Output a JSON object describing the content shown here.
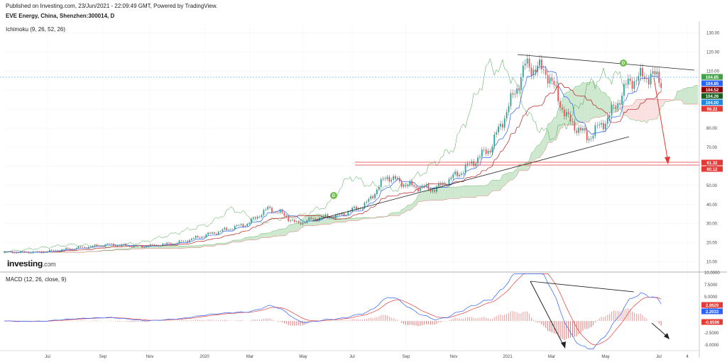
{
  "header": {
    "published": "Published on Investing.com, 23/Jun/2021 - 22:09:49 GMT, Powered by TradingView.",
    "ticker": "EVE Energy, China, Shenzhen:300014, D",
    "ichimoku_label": "Ichimoku (9, 26, 52, 26)",
    "macd_label": "MACD (12, 26, close, 9)"
  },
  "logo": {
    "brand": "Investing",
    "suffix": ".com"
  },
  "colors": {
    "up": "#26a69a",
    "down": "#ef5350",
    "conversion": "#2962ff",
    "base": "#b71c1c",
    "lagging": "#43a047",
    "cloud_bull": "#a5d6a7",
    "cloud_bear": "#f8c6c6",
    "macd": "#2962ff",
    "signal": "#e53935",
    "hist": "#e57373",
    "annot": "#222222"
  },
  "chart_data": [
    {
      "type": "candlestick",
      "title": "EVE Energy, China, Shenzhen:300014, D",
      "ylim": [
        5,
        135
      ],
      "y_ticks": [
        "130.00",
        "120.00",
        "110.00",
        "100.00",
        "90.00",
        "80.00",
        "70.00",
        "60.00",
        "50.00",
        "40.00",
        "30.00",
        "20.00",
        "10.00"
      ],
      "x_tick_labels": [
        "Jul",
        "Sep",
        "Nov",
        "2020",
        "Mar",
        "May",
        "Jul",
        "Sep",
        "Nov",
        "2021",
        "Mar",
        "May",
        "Jul",
        "4"
      ],
      "price_path": [
        [
          0,
          15
        ],
        [
          0.05,
          15
        ],
        [
          0.1,
          17
        ],
        [
          0.15,
          19
        ],
        [
          0.2,
          18
        ],
        [
          0.25,
          20
        ],
        [
          0.3,
          25
        ],
        [
          0.35,
          30
        ],
        [
          0.38,
          38
        ],
        [
          0.4,
          35
        ],
        [
          0.42,
          30
        ],
        [
          0.45,
          33
        ],
        [
          0.48,
          34
        ],
        [
          0.52,
          40
        ],
        [
          0.55,
          55
        ],
        [
          0.58,
          50
        ],
        [
          0.62,
          48
        ],
        [
          0.66,
          58
        ],
        [
          0.7,
          70
        ],
        [
          0.73,
          95
        ],
        [
          0.75,
          113
        ],
        [
          0.78,
          110
        ],
        [
          0.81,
          85
        ],
        [
          0.84,
          75
        ],
        [
          0.87,
          86
        ],
        [
          0.9,
          105
        ],
        [
          0.93,
          108
        ],
        [
          0.945,
          104.9
        ]
      ],
      "labels": [
        {
          "value": "104.85",
          "color": "#43a047"
        },
        {
          "value": "104.85",
          "color": "#2962ff"
        },
        {
          "value": "104.52",
          "color": "#8b0000"
        },
        {
          "value": "104.26",
          "color": "#1b5e20"
        },
        {
          "value": "104.00",
          "color": "#1e88e5"
        },
        {
          "value": "98.22",
          "color": "#e53935"
        },
        {
          "value": "61.32",
          "color": "#e53935"
        },
        {
          "value": "60.12",
          "color": "#e53935"
        }
      ],
      "annotation_marker": "D"
    },
    {
      "type": "macd",
      "title": "MACD (12, 26, close, 9)",
      "ylim": [
        -6,
        10
      ],
      "y_ticks": [
        "10.0000",
        "7.5000",
        "5.0000",
        "2.5000",
        "-2.5000",
        "-5.0000"
      ],
      "labels": [
        {
          "value": "2.8629",
          "color": "#e53935"
        },
        {
          "value": "2.2033",
          "color": "#2962ff"
        },
        {
          "value": "-0.6596",
          "color": "#e53935"
        }
      ]
    }
  ]
}
